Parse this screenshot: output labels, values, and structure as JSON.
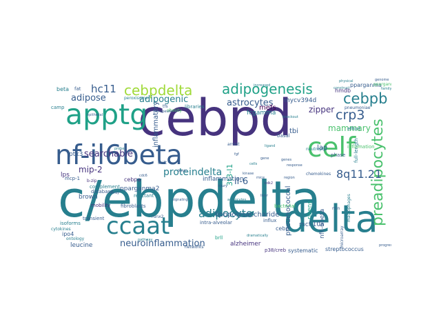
{
  "palette": [
    "#440154",
    "#46337e",
    "#365c8d",
    "#277f8e",
    "#1fa187",
    "#4ac16d",
    "#a0da39",
    "#fde725"
  ],
  "words": [
    {
      "text": "c/ebpdelta",
      "c": 3
    },
    {
      "text": "cebpd",
      "c": 1
    },
    {
      "text": "delta",
      "c": 3
    },
    {
      "text": "nf-il6beta",
      "c": 2
    },
    {
      "text": "apptg",
      "c": 4
    },
    {
      "text": "celf",
      "c": 5
    },
    {
      "text": "ccaat",
      "c": 3
    },
    {
      "text": "preadipocytes",
      "c": 5
    },
    {
      "text": "cebpdelta",
      "c": 6
    },
    {
      "text": "adipogenesis",
      "c": 4
    },
    {
      "text": "cebpb",
      "c": 3
    },
    {
      "text": "crp3",
      "c": 2
    },
    {
      "text": "adipocyte",
      "c": 3
    },
    {
      "text": "8q11.21",
      "c": 2
    },
    {
      "text": "neuroinflammation",
      "c": 2
    },
    {
      "text": "proteindelta",
      "c": 3
    },
    {
      "text": "hc11",
      "c": 2
    },
    {
      "text": "adipose",
      "c": 2
    },
    {
      "text": "adipogenic",
      "c": 3
    },
    {
      "text": "astrocytes",
      "c": 2
    },
    {
      "text": "searchable",
      "c": 1
    },
    {
      "text": "mammary",
      "c": 5
    },
    {
      "text": "zipper",
      "c": 1
    },
    {
      "text": "3t3-l1",
      "c": 4
    },
    {
      "text": "il-6",
      "c": 2
    },
    {
      "text": "mip-2",
      "c": 1
    },
    {
      "text": "inflammatory",
      "c": 2
    },
    {
      "text": "pneumococcal",
      "c": 2
    },
    {
      "text": "brown",
      "c": 2
    },
    {
      "text": "lipopolysaccharide",
      "c": 2
    },
    {
      "text": "alzheimer",
      "c": 1
    },
    {
      "text": "leucine",
      "c": 2
    },
    {
      "text": "nfil-6beta",
      "c": 2
    },
    {
      "text": "inflammation",
      "c": 2
    },
    {
      "text": "pparganma2",
      "c": 2
    },
    {
      "text": "mefs",
      "c": 0
    },
    {
      "text": "tbi",
      "c": 2
    },
    {
      "text": "lap",
      "c": 2
    },
    {
      "text": "hmdb",
      "c": 1
    },
    {
      "text": "mycv394d",
      "c": 2
    },
    {
      "text": "pparganma",
      "c": 2
    },
    {
      "text": "mcf-10a",
      "c": 2
    },
    {
      "text": "rikens",
      "c": 4
    },
    {
      "text": "streptococcus",
      "c": 2
    },
    {
      "text": "p38/creb",
      "c": 1
    },
    {
      "text": "systematic",
      "c": 2
    },
    {
      "text": "bacterial",
      "c": 5
    },
    {
      "text": "transient",
      "c": 2
    },
    {
      "text": "isoforms",
      "c": 3
    },
    {
      "text": "fibroblasts",
      "c": 2
    },
    {
      "text": "database",
      "c": 2
    },
    {
      "text": "complement",
      "c": 3
    },
    {
      "text": "cebpa",
      "c": 1
    },
    {
      "text": "mobility",
      "c": 1
    },
    {
      "text": "ptx3",
      "c": 2
    },
    {
      "text": "lps",
      "c": 1
    },
    {
      "text": "ipo4",
      "c": 2
    },
    {
      "text": "cebp",
      "c": 2
    },
    {
      "text": "tfs",
      "c": 2
    },
    {
      "text": "fcgamma",
      "c": 3
    },
    {
      "text": "basal",
      "c": 2
    },
    {
      "text": "phase",
      "c": 2
    },
    {
      "text": "effort",
      "c": 3
    },
    {
      "text": "beta",
      "c": 3
    },
    {
      "text": "fat",
      "c": 2
    },
    {
      "text": "camp",
      "c": 3
    },
    {
      "text": "full-length",
      "c": 3
    },
    {
      "text": "b-zip",
      "c": 1
    },
    {
      "text": "reactant",
      "c": 3
    },
    {
      "text": "influx",
      "c": 2
    },
    {
      "text": "intra-alveolar",
      "c": 2
    },
    {
      "text": "runx2",
      "c": 2
    },
    {
      "text": "arrest",
      "c": 2
    },
    {
      "text": "shift",
      "c": 2
    },
    {
      "text": "obesity",
      "c": 5
    },
    {
      "text": "microarray",
      "c": 2
    },
    {
      "text": "macrophages",
      "c": 3
    },
    {
      "text": "chemokines",
      "c": 2
    },
    {
      "text": "pneumoniae",
      "c": 2
    },
    {
      "text": "peroxisome",
      "c": 3
    },
    {
      "text": "neutrophil",
      "c": 3
    },
    {
      "text": "networks",
      "c": 2
    },
    {
      "text": "cytokines",
      "c": 3
    },
    {
      "text": "ontology",
      "c": 3
    },
    {
      "text": "libraries",
      "c": 3
    },
    {
      "text": "brll",
      "c": 4
    },
    {
      "text": "mcp-1",
      "c": 2
    },
    {
      "text": "epithelial",
      "c": 2
    },
    {
      "text": "therapeutic",
      "c": 2
    },
    {
      "text": "inflamation",
      "c": 5
    },
    {
      "text": "pparganma",
      "c": 5
    },
    {
      "text": "family",
      "c": 3
    },
    {
      "text": "genome",
      "c": 2
    },
    {
      "text": "knockout",
      "c": 3
    },
    {
      "text": "min",
      "c": 2
    },
    {
      "text": "gene",
      "c": 2
    },
    {
      "text": "basic",
      "c": 2
    },
    {
      "text": "ligand",
      "c": 3
    },
    {
      "text": "array",
      "c": 2
    },
    {
      "text": "mice",
      "c": 2
    },
    {
      "text": "probe",
      "c": 3
    },
    {
      "text": "injury",
      "c": 2
    },
    {
      "text": "genes",
      "c": 2
    },
    {
      "text": "cells",
      "c": 3
    },
    {
      "text": "region",
      "c": 2
    },
    {
      "text": "cdc6",
      "c": 2
    },
    {
      "text": "cdk2",
      "c": 1
    },
    {
      "text": "fgf",
      "c": 2
    },
    {
      "text": "kinase",
      "c": 2
    },
    {
      "text": "liver",
      "c": 2
    },
    {
      "text": "adipocytes",
      "c": 3
    },
    {
      "text": "pathway",
      "c": 3
    },
    {
      "text": "signaling",
      "c": 2
    },
    {
      "text": "dramatically",
      "c": 3
    },
    {
      "text": "construct",
      "c": 3
    },
    {
      "text": "physical",
      "c": 3
    },
    {
      "text": "progression",
      "c": 2
    },
    {
      "text": "increased",
      "c": 3
    },
    {
      "text": "response",
      "c": 2
    }
  ]
}
